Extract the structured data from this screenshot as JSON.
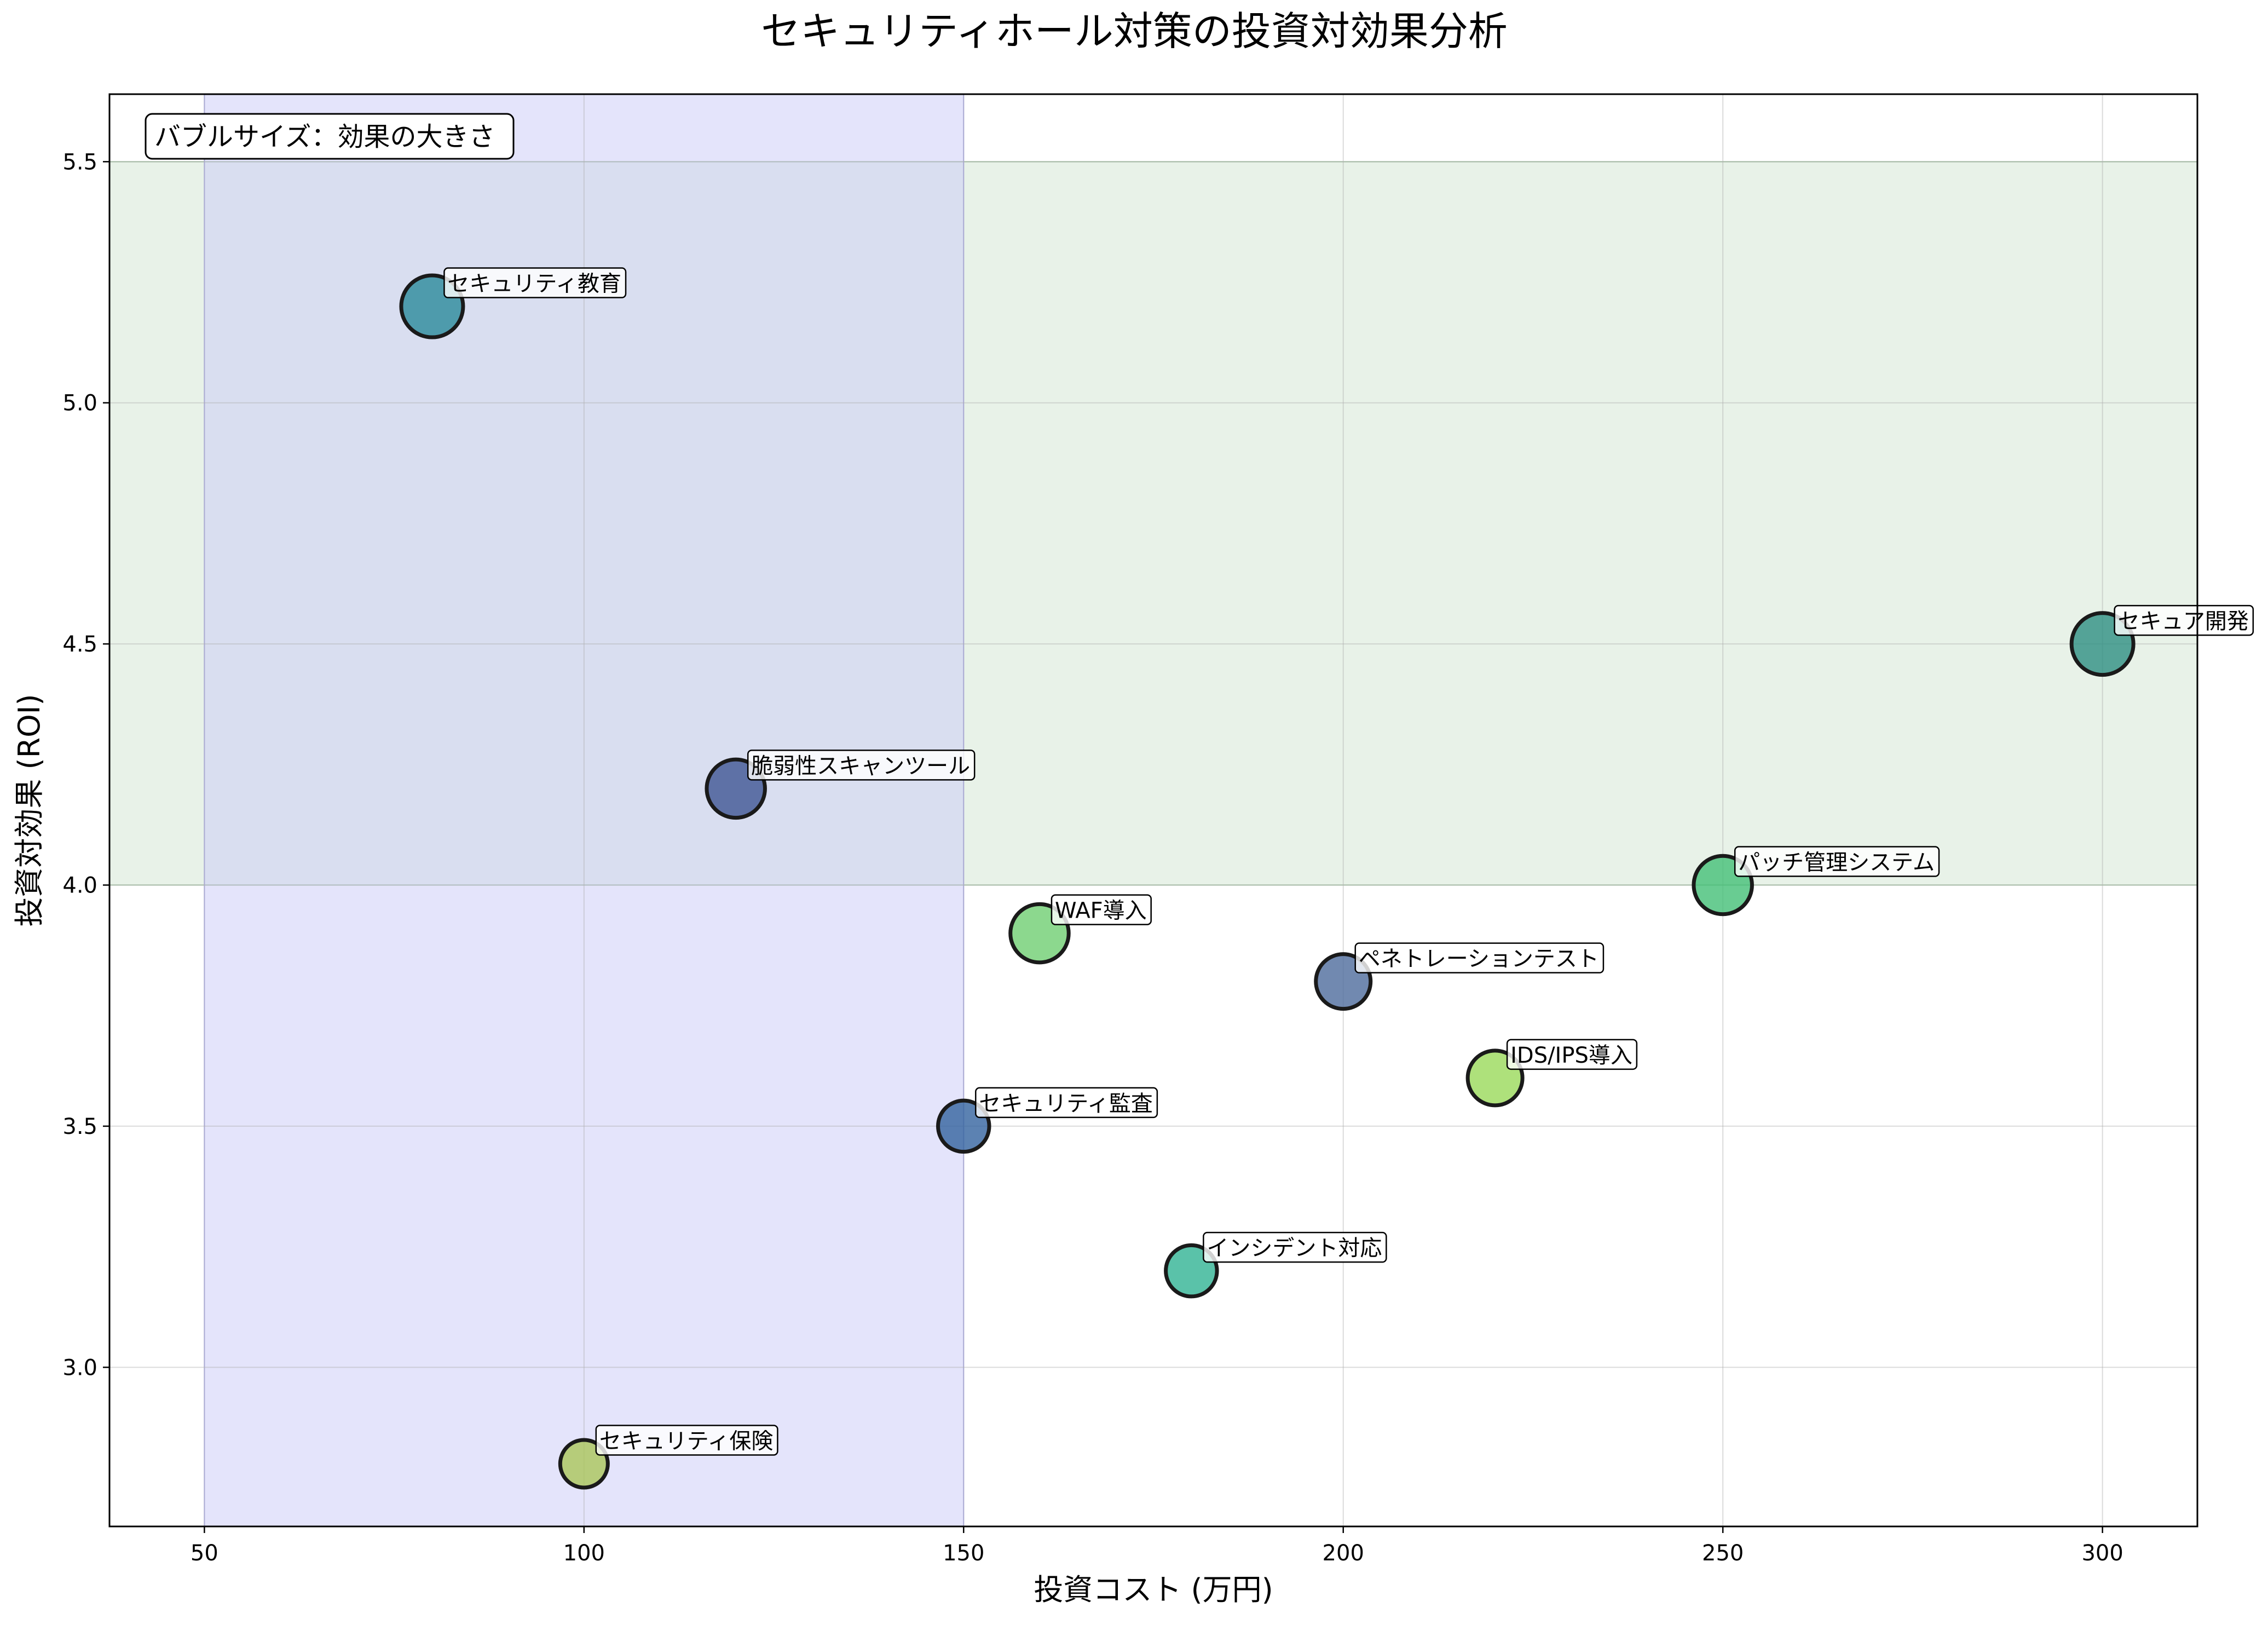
{
  "chart_data": {
    "type": "scatter",
    "title": "セキュリティホール対策の投資対効果分析",
    "xlabel": "投資コスト (万円)",
    "ylabel": "投資対効果 (ROI)",
    "xlim": [
      37.5,
      312.5
    ],
    "ylim": [
      2.67,
      5.64
    ],
    "xticks": [
      50,
      100,
      150,
      200,
      250,
      300
    ],
    "yticks": [
      3.0,
      3.5,
      4.0,
      4.5,
      5.0,
      5.5
    ],
    "grid": true,
    "note": "バブルサイズ：効果の大きさ",
    "regions": [
      {
        "axis": "y",
        "from": 4.0,
        "to": 5.5,
        "color": "#e6f1e6"
      },
      {
        "axis": "x",
        "from": 50,
        "to": 150,
        "color": "#c9c9f7"
      }
    ],
    "points": [
      {
        "label": "セキュリティ教育",
        "x": 80,
        "y": 5.2,
        "size": 5,
        "color": "#2a8a9b"
      },
      {
        "label": "セキュア開発",
        "x": 300,
        "y": 4.5,
        "size": 5,
        "color": "#2e8e82"
      },
      {
        "label": "脆弱性スキャンツール",
        "x": 120,
        "y": 4.2,
        "size": 4.5,
        "color": "#3f5593"
      },
      {
        "label": "パッチ管理システム",
        "x": 250,
        "y": 4.0,
        "size": 4.5,
        "color": "#43bf77"
      },
      {
        "label": "WAF導入",
        "x": 160,
        "y": 3.9,
        "size": 4.5,
        "color": "#6fce72"
      },
      {
        "label": "ペネトレーションテスト",
        "x": 200,
        "y": 3.8,
        "size": 4,
        "color": "#4e6b9c"
      },
      {
        "label": "IDS/IPS導入",
        "x": 220,
        "y": 3.6,
        "size": 4,
        "color": "#9ad95a"
      },
      {
        "label": "セキュリティ監査",
        "x": 150,
        "y": 3.5,
        "size": 3.5,
        "color": "#33639f"
      },
      {
        "label": "インシデント対応",
        "x": 180,
        "y": 3.2,
        "size": 3.5,
        "color": "#31b394"
      },
      {
        "label": "セキュリティ保険",
        "x": 100,
        "y": 2.8,
        "size": 3,
        "color": "#aac55a"
      }
    ]
  }
}
